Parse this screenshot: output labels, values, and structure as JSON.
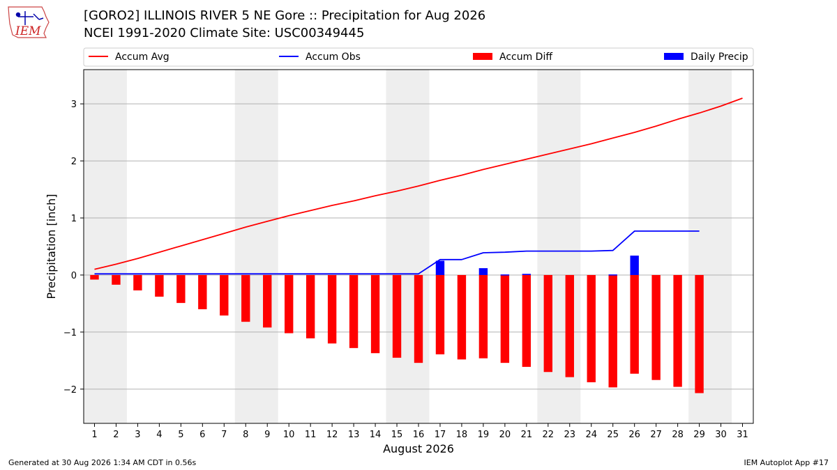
{
  "header": {
    "title_line1": "[GORO2] ILLINOIS RIVER 5 NE Gore :: Precipitation for Aug 2026",
    "title_line2": "NCEI 1991-2020 Climate Site: USC00349445",
    "logo_text": "IEM"
  },
  "footer": {
    "generated": "Generated at 30 Aug 2026 1:34 AM CDT in 0.56s",
    "app": "IEM Autoplot App #17"
  },
  "colors": {
    "avg": "#ff0000",
    "obs": "#0000ff",
    "diff": "#ff0000",
    "daily": "#0000ff",
    "weekend_shade": "#eeeeee",
    "grid": "#b0b0b0"
  },
  "chart_data": {
    "type": "bar",
    "xlabel": "August 2026",
    "ylabel": "Precipitation [inch]",
    "ylim": [
      -2.6,
      3.6
    ],
    "xlim": [
      0.5,
      31.5
    ],
    "yticks": [
      -2,
      -1,
      0,
      1,
      2,
      3
    ],
    "ytick_labels": [
      "−2",
      "−1",
      "0",
      "1",
      "2",
      "3"
    ],
    "xticks": [
      1,
      2,
      3,
      4,
      5,
      6,
      7,
      8,
      9,
      10,
      11,
      12,
      13,
      14,
      15,
      16,
      17,
      18,
      19,
      20,
      21,
      22,
      23,
      24,
      25,
      26,
      27,
      28,
      29,
      30,
      31
    ],
    "grid": "y",
    "legend": {
      "placement": "top",
      "entries": [
        {
          "label": "Accum Avg",
          "kind": "line",
          "series": "avg"
        },
        {
          "label": "Accum Obs",
          "kind": "line",
          "series": "obs"
        },
        {
          "label": "Accum Diff",
          "kind": "bar",
          "series": "diff"
        },
        {
          "label": "Daily Precip",
          "kind": "bar",
          "series": "daily"
        }
      ]
    },
    "shaded_days": [
      [
        1,
        2
      ],
      [
        8,
        9
      ],
      [
        15,
        16
      ],
      [
        22,
        23
      ],
      [
        29,
        30
      ]
    ],
    "series": [
      {
        "name": "Accum Avg",
        "type": "line",
        "x": [
          1,
          2,
          3,
          4,
          5,
          6,
          7,
          8,
          9,
          10,
          11,
          12,
          13,
          14,
          15,
          16,
          17,
          18,
          19,
          20,
          21,
          22,
          23,
          24,
          25,
          26,
          27,
          28,
          29,
          30,
          31
        ],
        "values": [
          0.1,
          0.19,
          0.29,
          0.4,
          0.51,
          0.62,
          0.73,
          0.84,
          0.94,
          1.04,
          1.13,
          1.22,
          1.3,
          1.39,
          1.47,
          1.56,
          1.66,
          1.75,
          1.85,
          1.94,
          2.03,
          2.12,
          2.21,
          2.3,
          2.4,
          2.5,
          2.61,
          2.73,
          2.84,
          2.96,
          3.1
        ]
      },
      {
        "name": "Accum Obs",
        "type": "line",
        "x": [
          1,
          2,
          3,
          4,
          5,
          6,
          7,
          8,
          9,
          10,
          11,
          12,
          13,
          14,
          15,
          16,
          17,
          18,
          19,
          20,
          21,
          22,
          23,
          24,
          25,
          26,
          27,
          28,
          29
        ],
        "values": [
          0.02,
          0.02,
          0.02,
          0.02,
          0.02,
          0.02,
          0.02,
          0.02,
          0.02,
          0.02,
          0.02,
          0.02,
          0.02,
          0.02,
          0.02,
          0.02,
          0.27,
          0.27,
          0.39,
          0.4,
          0.42,
          0.42,
          0.42,
          0.42,
          0.43,
          0.77,
          0.77,
          0.77,
          0.77
        ]
      },
      {
        "name": "Accum Diff",
        "type": "bar",
        "x": [
          1,
          2,
          3,
          4,
          5,
          6,
          7,
          8,
          9,
          10,
          11,
          12,
          13,
          14,
          15,
          16,
          17,
          18,
          19,
          20,
          21,
          22,
          23,
          24,
          25,
          26,
          27,
          28,
          29
        ],
        "values": [
          -0.08,
          -0.17,
          -0.27,
          -0.38,
          -0.49,
          -0.6,
          -0.71,
          -0.82,
          -0.92,
          -1.02,
          -1.11,
          -1.2,
          -1.28,
          -1.37,
          -1.45,
          -1.54,
          -1.39,
          -1.48,
          -1.46,
          -1.54,
          -1.61,
          -1.7,
          -1.79,
          -1.88,
          -1.97,
          -1.73,
          -1.84,
          -1.96,
          -2.07
        ]
      },
      {
        "name": "Daily Precip",
        "type": "bar",
        "x": [
          17,
          19,
          20,
          21,
          25,
          26
        ],
        "values": [
          0.25,
          0.12,
          0.01,
          0.02,
          0.01,
          0.34
        ]
      }
    ]
  }
}
